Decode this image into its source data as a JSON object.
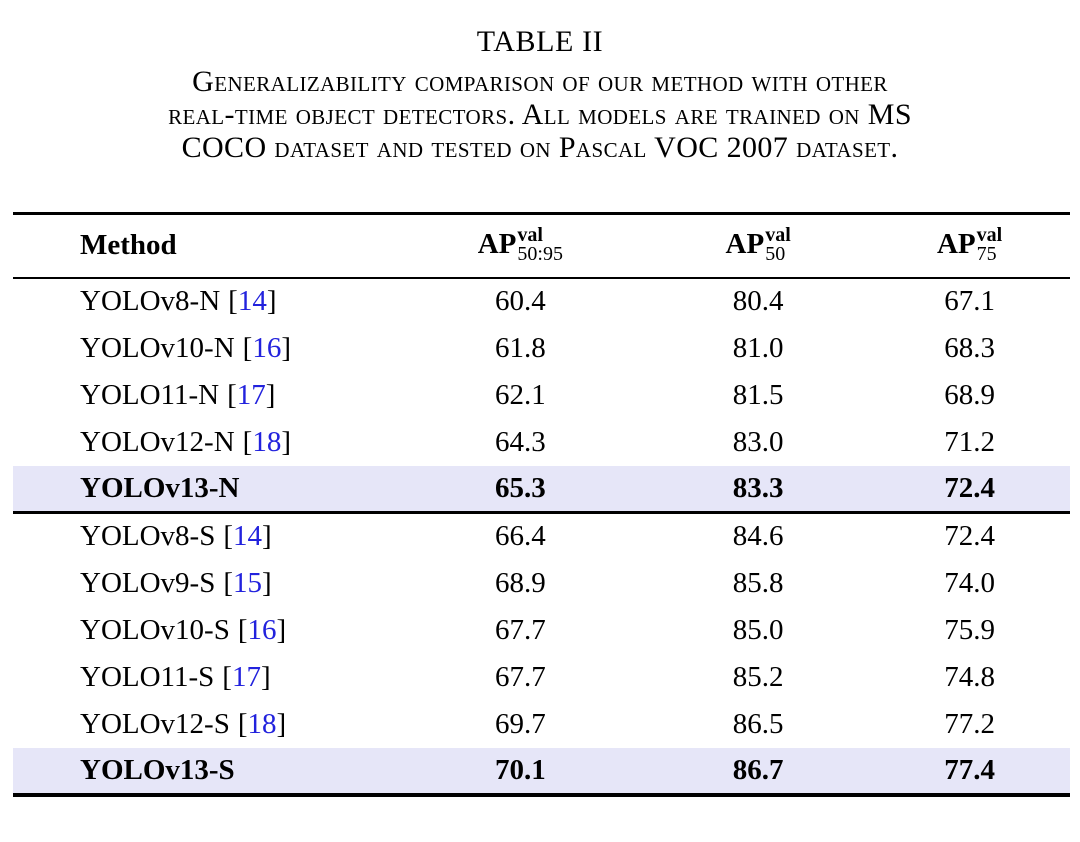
{
  "caption": {
    "label": "TABLE II",
    "lines": [
      "Generalizability comparison of our method with other",
      "real-time object detectors. All models are trained on MS",
      "COCO dataset and tested on Pascal VOC 2007 dataset."
    ]
  },
  "table": {
    "cite_open": "[",
    "cite_close": "]",
    "header": {
      "method": "Method",
      "cols": [
        {
          "base": "AP",
          "sup": "val",
          "sub": "50:95"
        },
        {
          "base": "AP",
          "sup": "val",
          "sub": "50"
        },
        {
          "base": "AP",
          "sup": "val",
          "sub": "75"
        }
      ]
    },
    "groups": [
      {
        "rows": [
          {
            "method": "YOLOv8-N",
            "cite": "14",
            "ap5095": "60.4",
            "ap50": "80.4",
            "ap75": "67.1"
          },
          {
            "method": "YOLOv10-N",
            "cite": "16",
            "ap5095": "61.8",
            "ap50": "81.0",
            "ap75": "68.3"
          },
          {
            "method": "YOLO11-N",
            "cite": "17",
            "ap5095": "62.1",
            "ap50": "81.5",
            "ap75": "68.9"
          },
          {
            "method": "YOLOv12-N",
            "cite": "18",
            "ap5095": "64.3",
            "ap50": "83.0",
            "ap75": "71.2"
          },
          {
            "method": "YOLOv13-N",
            "cite": "",
            "ap5095": "65.3",
            "ap50": "83.3",
            "ap75": "72.4",
            "highlight": true
          }
        ]
      },
      {
        "rows": [
          {
            "method": "YOLOv8-S",
            "cite": "14",
            "ap5095": "66.4",
            "ap50": "84.6",
            "ap75": "72.4"
          },
          {
            "method": "YOLOv9-S",
            "cite": "15",
            "ap5095": "68.9",
            "ap50": "85.8",
            "ap75": "74.0"
          },
          {
            "method": "YOLOv10-S",
            "cite": "16",
            "ap5095": "67.7",
            "ap50": "85.0",
            "ap75": "75.9"
          },
          {
            "method": "YOLO11-S",
            "cite": "17",
            "ap5095": "67.7",
            "ap50": "85.2",
            "ap75": "74.8"
          },
          {
            "method": "YOLOv12-S",
            "cite": "18",
            "ap5095": "69.7",
            "ap50": "86.5",
            "ap75": "77.2"
          },
          {
            "method": "YOLOv13-S",
            "cite": "",
            "ap5095": "70.1",
            "ap50": "86.7",
            "ap75": "77.4",
            "highlight": true
          }
        ]
      }
    ]
  },
  "colors": {
    "text": "#000000",
    "background": "#FFFFFF",
    "citation_blue": "#2222DD",
    "highlight_lavender": "#E6E6F8",
    "rule_black": "#000000"
  }
}
